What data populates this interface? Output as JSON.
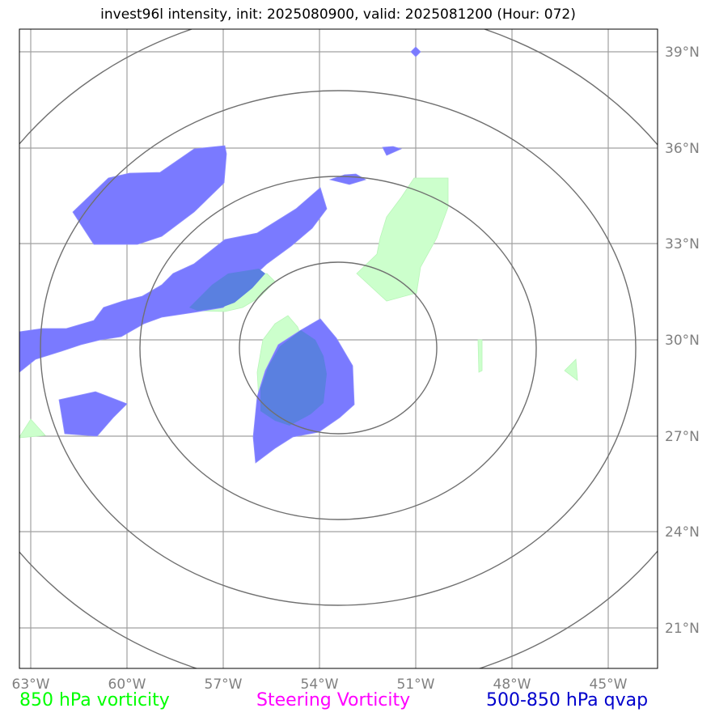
{
  "title": "invest96l intensity, init: 2025080900, valid: 2025081200 (Hour: 072)",
  "axes": {
    "lon_ticks": [
      "63°W",
      "60°W",
      "57°W",
      "54°W",
      "51°W",
      "48°W",
      "45°W"
    ],
    "lat_ticks": [
      "39°N",
      "36°N",
      "33°N",
      "30°N",
      "27°N",
      "24°N",
      "21°N"
    ]
  },
  "legend": [
    {
      "label": "850 hPa vorticity",
      "color": "#00ff00"
    },
    {
      "label": "Steering Vorticity",
      "color": "#ff00ff"
    },
    {
      "label": "500-850 hPa qvap",
      "color": "#0000cc"
    }
  ],
  "colors": {
    "vorticity_fill": "#ccffcc",
    "qvap_fill": "#6666ff",
    "overlap_fill": "#5a80e0",
    "grid": "#a0a0a0",
    "range_rings": "#707070",
    "tick_text": "#808080"
  }
}
